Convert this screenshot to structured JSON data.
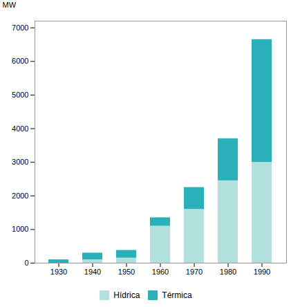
{
  "chart_data": {
    "type": "bar",
    "stacked": true,
    "categories": [
      "1930",
      "1940",
      "1950",
      "1960",
      "1970",
      "1980",
      "1990"
    ],
    "series": [
      {
        "name": "Hídrica",
        "color": "#b2e0dc",
        "values": [
          0,
          100,
          150,
          1100,
          1600,
          2450,
          3000
        ]
      },
      {
        "name": "Térmica",
        "color": "#2ab0b8",
        "values": [
          100,
          200,
          230,
          250,
          650,
          1250,
          3650
        ]
      }
    ],
    "ylabel": "MW",
    "ylim": [
      0,
      7200
    ],
    "yticks": [
      0,
      1000,
      2000,
      3000,
      4000,
      5000,
      6000,
      7000
    ],
    "grid": false,
    "legend": "bottom"
  }
}
